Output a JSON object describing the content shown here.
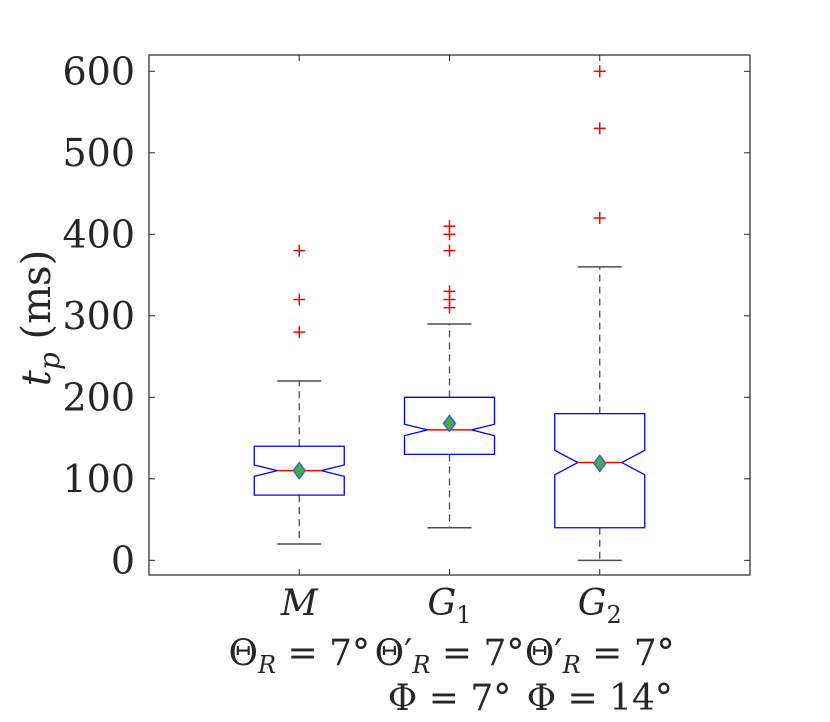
{
  "chart_data": {
    "type": "boxplot",
    "ylabel_main": "t",
    "ylabel_sub": "p",
    "ylabel_unit": " (ms)",
    "ylim": [
      -18,
      620
    ],
    "yticks": [
      0,
      100,
      200,
      300,
      400,
      500,
      600
    ],
    "ytick_labels": [
      "0",
      "100",
      "200",
      "300",
      "400",
      "500",
      "600"
    ],
    "notched": true,
    "grid": false,
    "colors": {
      "box": "#0000ff",
      "median": "#ff0000",
      "whisker": "#4d4d4d",
      "outlier": "#ff0000",
      "mean_fill": "#4ca64c",
      "mean_edge": "#2f6fb5",
      "axis": "#262626"
    },
    "groups": [
      {
        "name": "M",
        "name_sub": "",
        "line2": {
          "sym": "Θ",
          "prime": "",
          "sub": "R",
          "rest": " = 7°"
        },
        "line3": {
          "sym": "",
          "rest": ""
        },
        "q1": 80,
        "median": 110,
        "q3": 140,
        "notch_low": 103,
        "notch_high": 117,
        "whisker_low": 20,
        "whisker_high": 220,
        "mean": 110,
        "outliers": [
          280,
          320,
          380
        ]
      },
      {
        "name": "G",
        "name_sub": "1",
        "line2": {
          "sym": "Θ",
          "prime": "′",
          "sub": "R",
          "rest": " = 7°"
        },
        "line3": {
          "sym": "Φ",
          "rest": " = 7°"
        },
        "q1": 130,
        "median": 160,
        "q3": 200,
        "notch_low": 153,
        "notch_high": 167,
        "whisker_low": 40,
        "whisker_high": 290,
        "mean": 168,
        "outliers": [
          310,
          320,
          330,
          380,
          400,
          410
        ]
      },
      {
        "name": "G",
        "name_sub": "2",
        "line2": {
          "sym": "Θ",
          "prime": "′",
          "sub": "R",
          "rest": " = 7°"
        },
        "line3": {
          "sym": "Φ",
          "rest": " = 14°"
        },
        "q1": 40,
        "median": 120,
        "q3": 180,
        "notch_low": 105,
        "notch_high": 135,
        "whisker_low": 0,
        "whisker_high": 360,
        "mean": 119,
        "outliers": [
          420,
          530,
          600
        ]
      }
    ]
  }
}
